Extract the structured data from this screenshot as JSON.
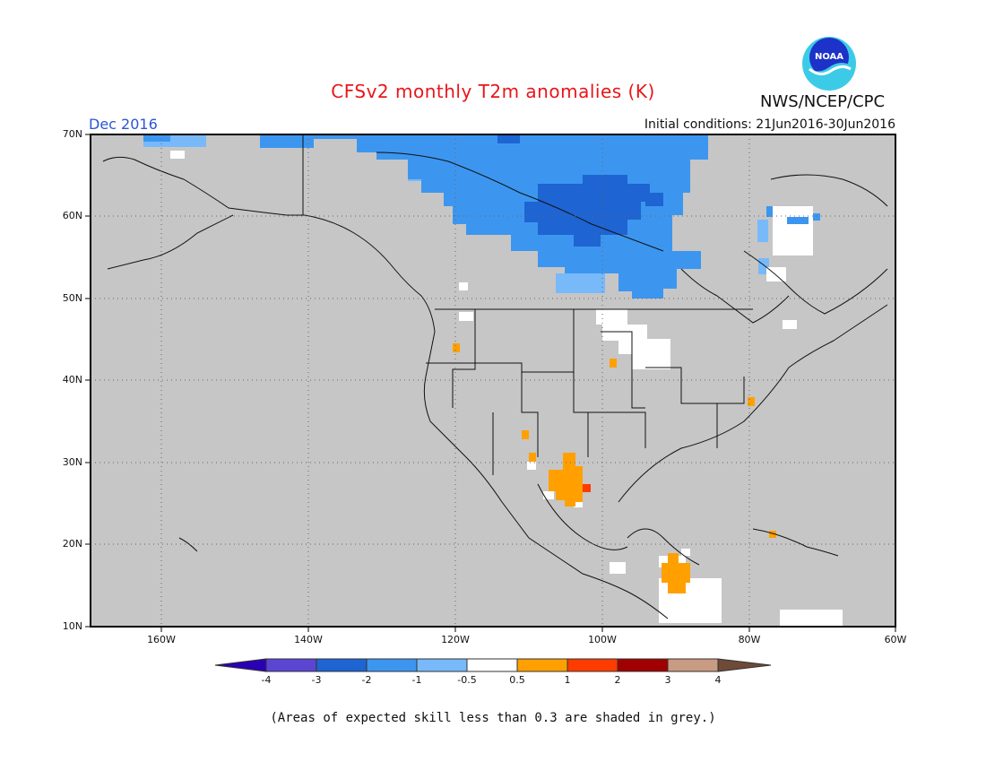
{
  "title": "CFSv2 monthly T2m anomalies (K)",
  "brand": "NWS/NCEP/CPC",
  "logo_text": "NOAA",
  "valid_month": "Dec 2016",
  "initial_conditions": "Initial conditions: 21Jun2016-30Jun2016",
  "lat_labels": [
    "70N",
    "60N",
    "50N",
    "40N",
    "30N",
    "20N",
    "10N"
  ],
  "lon_labels": [
    "160W",
    "140W",
    "120W",
    "100W",
    "80W",
    "60W"
  ],
  "colorbar": {
    "labels": [
      "-4",
      "-3",
      "-2",
      "-1",
      "-0.5",
      "0.5",
      "1",
      "2",
      "3",
      "4"
    ],
    "colors": [
      "#2a00b4",
      "#5a46d2",
      "#1e64d2",
      "#3c96f0",
      "#78b9fa",
      "#ffffff",
      "#ffa000",
      "#ff3c00",
      "#a00000",
      "#c89b82",
      "#6e4b37"
    ]
  },
  "skill_note": "(Areas of expected skill less than 0.3 are shaded in grey.)",
  "colors": {
    "grey_mask": "#c6c6c6",
    "title": "#e8161a",
    "month": "#2a55d6"
  }
}
